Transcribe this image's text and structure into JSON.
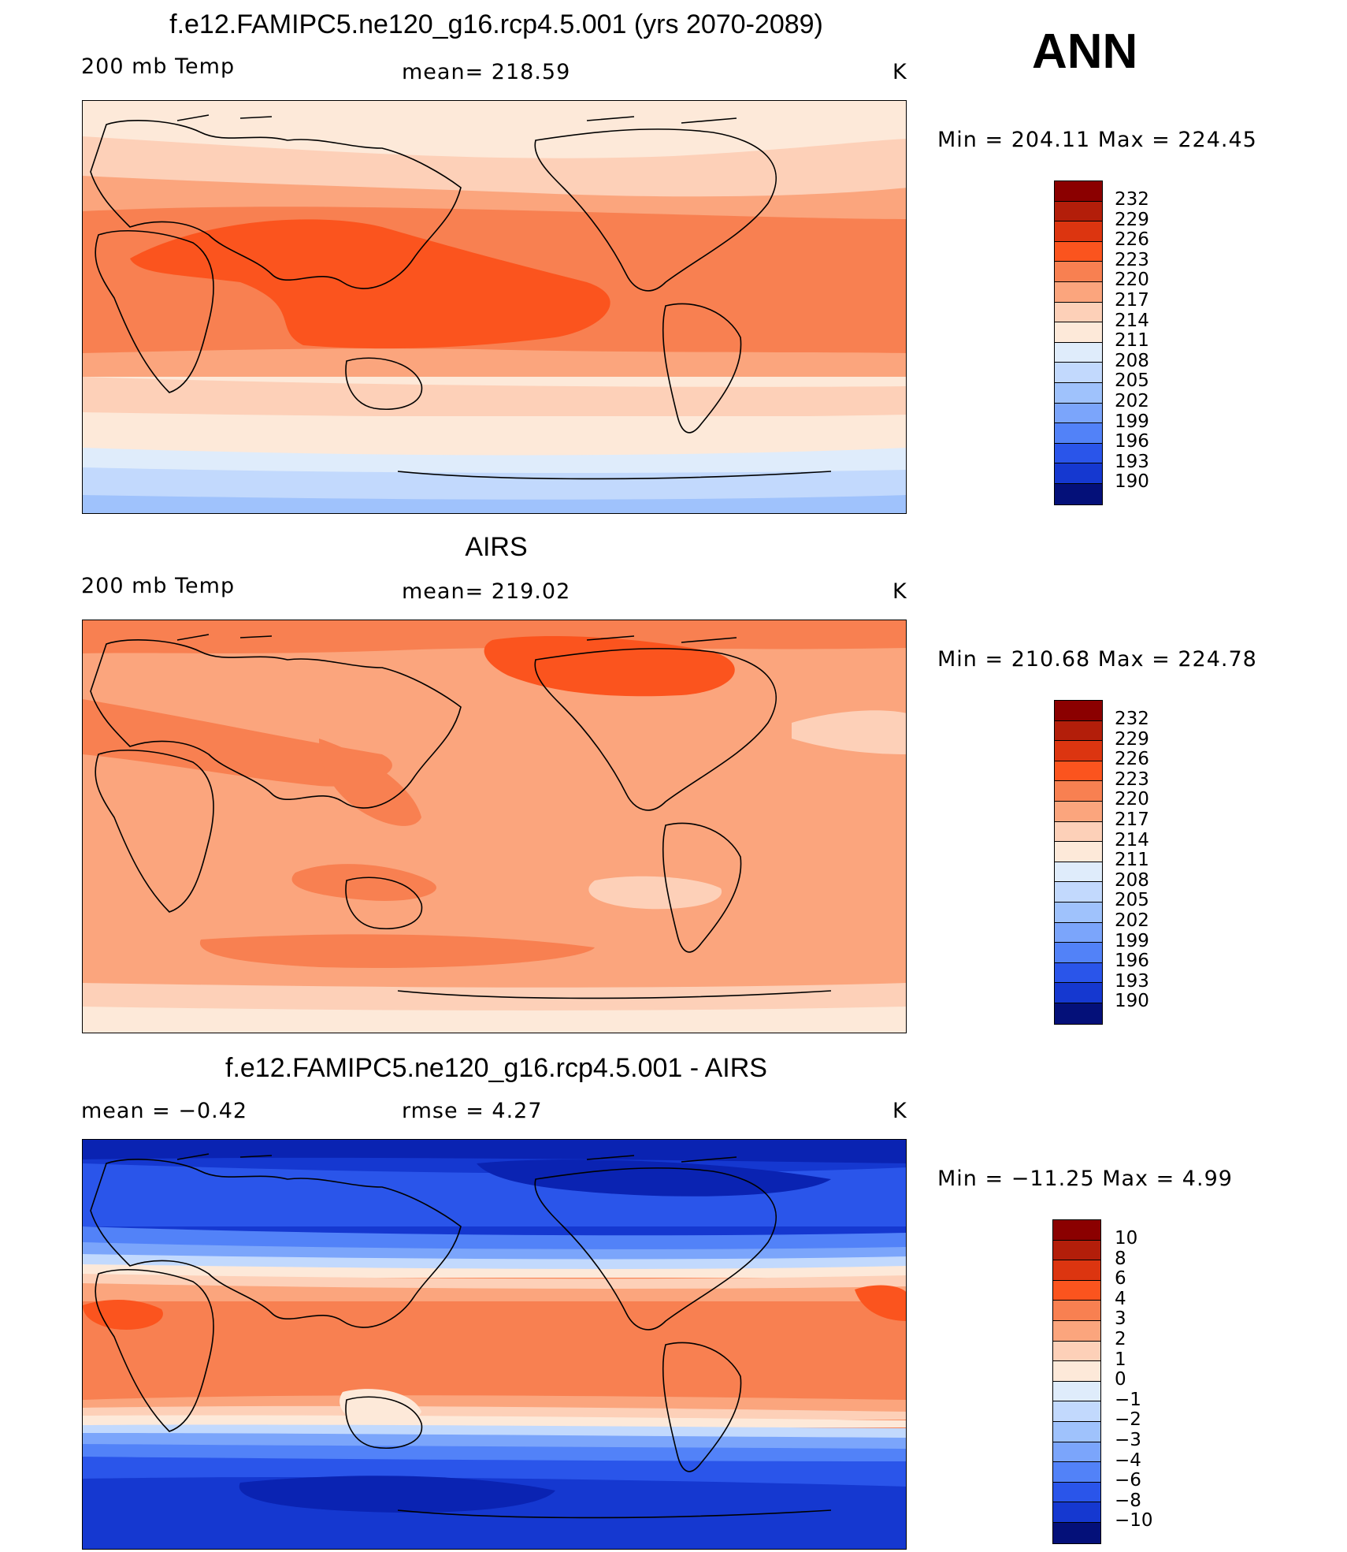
{
  "season": "ANN",
  "panels": [
    {
      "title": "f.e12.FAMIPC5.ne120_g16.rcp4.5.001 (yrs 2070-2089)",
      "left_label": "200 mb Temp",
      "center_label": "mean=  218.59",
      "unit": "K",
      "minmax": "Min  =  204.11  Max  =  224.45",
      "colorbar_ticks": [
        "232",
        "229",
        "226",
        "223",
        "220",
        "217",
        "214",
        "211",
        "208",
        "205",
        "202",
        "199",
        "196",
        "193",
        "190"
      ],
      "colorbar_colors": [
        "#8b0000",
        "#b31e0a",
        "#dc3510",
        "#fb541e",
        "#f88051",
        "#fba57d",
        "#fdd0b8",
        "#fde9d9",
        "#dfecfb",
        "#c2d9fd",
        "#9fc2fc",
        "#7ba5fb",
        "#5282f8",
        "#2a55ea",
        "#1538d0",
        "#0a23b2",
        "#041079"
      ],
      "bands_note": "zonal temperature pattern"
    },
    {
      "title": "AIRS",
      "left_label": "200 mb Temp",
      "center_label": "mean=  219.02",
      "unit": "K",
      "minmax": "Min  =  210.68  Max  =  224.78",
      "colorbar_ticks": [
        "232",
        "229",
        "226",
        "223",
        "220",
        "217",
        "214",
        "211",
        "208",
        "205",
        "202",
        "199",
        "196",
        "193",
        "190"
      ],
      "colorbar_colors": [
        "#8b0000",
        "#b31e0a",
        "#dc3510",
        "#fb541e",
        "#f88051",
        "#fba57d",
        "#fdd0b8",
        "#fde9d9",
        "#dfecfb",
        "#c2d9fd",
        "#9fc2fc",
        "#7ba5fb",
        "#5282f8",
        "#2a55ea",
        "#1538d0",
        "#0a23b2",
        "#041079"
      ]
    },
    {
      "title": "f.e12.FAMIPC5.ne120_g16.rcp4.5.001 - AIRS",
      "left_label": "mean  =    −0.42",
      "center_label": "rmse  =     4.27",
      "unit": "K",
      "minmax": "Min  =  −11.25  Max  =     4.99",
      "colorbar_ticks": [
        "10",
        "8",
        "6",
        "4",
        "3",
        "2",
        "1",
        "0",
        "−1",
        "−2",
        "−3",
        "−4",
        "−6",
        "−8",
        "−10"
      ],
      "colorbar_colors": [
        "#8b0000",
        "#b31e0a",
        "#dc3510",
        "#fb541e",
        "#f88051",
        "#fba57d",
        "#fdd0b8",
        "#fde9d9",
        "#dfecfb",
        "#c2d9fd",
        "#9fc2fc",
        "#7ba5fb",
        "#5282f8",
        "#2a55ea",
        "#1538d0",
        "#0a23b2",
        "#041079"
      ]
    }
  ]
}
